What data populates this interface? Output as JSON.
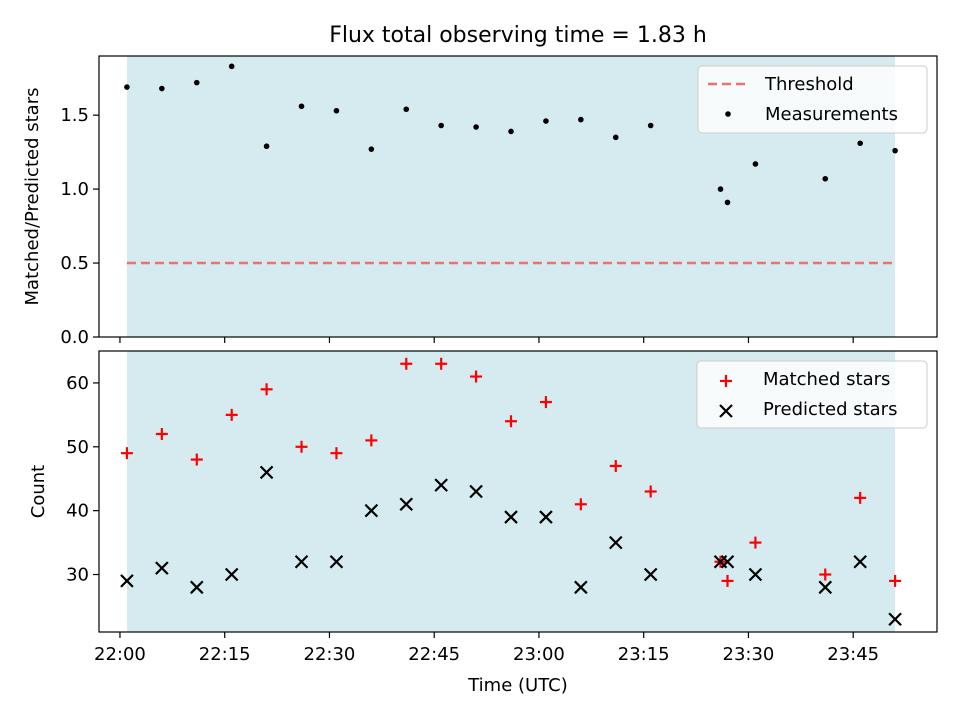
{
  "title": "Flux total observing time = 1.83 h",
  "xlabel": "Time (UTC)",
  "colors": {
    "shade": "#d5ebf0",
    "threshold": "#f07070",
    "measurement": "#000000",
    "matched": "#ff0000",
    "predicted": "#000000"
  },
  "chart_data": [
    {
      "type": "scatter",
      "panel": "top",
      "title": "Flux total observing time = 1.83 h",
      "xlabel": "",
      "ylabel": "Matched/Predicted stars",
      "xlim": [
        "21:57",
        "23:57"
      ],
      "ylim": [
        0,
        1.9
      ],
      "yticks": [
        0.0,
        0.5,
        1.0,
        1.5
      ],
      "ytick_labels": [
        "0.0",
        "0.5",
        "1.0",
        "1.5"
      ],
      "shaded_span": [
        "22:01",
        "23:51"
      ],
      "legend": {
        "placement": "top-right",
        "entries": [
          "Threshold",
          "Measurements"
        ]
      },
      "threshold": {
        "name": "Threshold",
        "x": [
          "22:01",
          "23:51"
        ],
        "y": 0.5
      },
      "series": [
        {
          "name": "Measurements",
          "x": [
            "22:01",
            "22:06",
            "22:11",
            "22:16",
            "22:21",
            "22:26",
            "22:31",
            "22:36",
            "22:41",
            "22:46",
            "22:51",
            "22:56",
            "23:01",
            "23:06",
            "23:11",
            "23:16",
            "23:26",
            "23:27",
            "23:31",
            "23:41",
            "23:46",
            "23:51"
          ],
          "y": [
            1.69,
            1.68,
            1.72,
            1.83,
            1.29,
            1.56,
            1.53,
            1.27,
            1.54,
            1.43,
            1.42,
            1.39,
            1.46,
            1.47,
            1.35,
            1.43,
            1.0,
            0.91,
            1.17,
            1.07,
            1.31,
            1.26
          ]
        }
      ]
    },
    {
      "type": "scatter",
      "panel": "bottom",
      "xlabel": "Time (UTC)",
      "ylabel": "Count",
      "xlim": [
        "21:57",
        "23:57"
      ],
      "ylim": [
        21,
        65
      ],
      "xticks": [
        "22:00",
        "22:15",
        "22:30",
        "22:45",
        "23:00",
        "23:15",
        "23:30",
        "23:45"
      ],
      "yticks": [
        30,
        40,
        50,
        60
      ],
      "ytick_labels": [
        "30",
        "40",
        "50",
        "60"
      ],
      "shaded_span": [
        "22:01",
        "23:51"
      ],
      "legend": {
        "placement": "top-right",
        "entries": [
          "Matched stars",
          "Predicted stars"
        ]
      },
      "series": [
        {
          "name": "Matched stars",
          "x": [
            "22:01",
            "22:06",
            "22:11",
            "22:16",
            "22:21",
            "22:26",
            "22:31",
            "22:36",
            "22:41",
            "22:46",
            "22:51",
            "22:56",
            "23:01",
            "23:06",
            "23:11",
            "23:16",
            "23:26",
            "23:27",
            "23:31",
            "23:41",
            "23:46",
            "23:51"
          ],
          "y": [
            49,
            52,
            48,
            55,
            59,
            50,
            49,
            51,
            63,
            63,
            61,
            54,
            57,
            41,
            47,
            43,
            32,
            29,
            35,
            30,
            42,
            29
          ]
        },
        {
          "name": "Predicted stars",
          "x": [
            "22:01",
            "22:06",
            "22:11",
            "22:16",
            "22:21",
            "22:26",
            "22:31",
            "22:36",
            "22:41",
            "22:46",
            "22:51",
            "22:56",
            "23:01",
            "23:06",
            "23:11",
            "23:16",
            "23:26",
            "23:27",
            "23:31",
            "23:41",
            "23:46",
            "23:51"
          ],
          "y": [
            29,
            31,
            28,
            30,
            46,
            32,
            32,
            40,
            41,
            44,
            43,
            39,
            39,
            28,
            35,
            30,
            32,
            32,
            30,
            28,
            32,
            23
          ]
        }
      ]
    }
  ]
}
